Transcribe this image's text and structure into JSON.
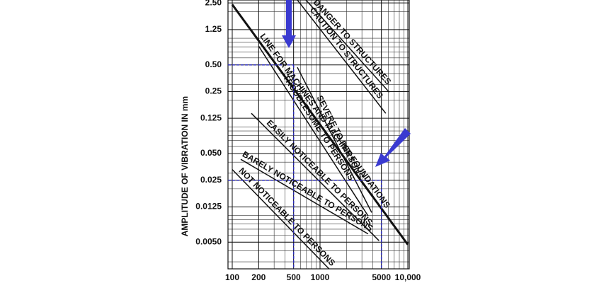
{
  "chart_data": {
    "type": "line",
    "log_x": true,
    "log_y": true,
    "grid": true,
    "y_label": "AMPLITUDE OF VIBRATION IN mm",
    "xlim": [
      100,
      10000
    ],
    "ylim": [
      0.0025,
      2.7
    ],
    "xticks": [
      100,
      200,
      500,
      1000,
      5000,
      {
        "value": 10000,
        "label": "10,000"
      }
    ],
    "yticks": [
      {
        "value": 2.5,
        "label": "2.50"
      },
      1.25,
      {
        "value": 0.5,
        "label": "0.50"
      },
      0.25,
      0.125,
      {
        "value": 0.05,
        "label": "0.050"
      },
      0.025,
      0.0125,
      {
        "value": 0.005,
        "label": "0.0050"
      }
    ],
    "series": [
      {
        "name": "LINE FOR MACHINES AND MACHINE FOUNDATIONS",
        "color": "#111111",
        "width": 3,
        "x": [
          100,
          10000
        ],
        "values": [
          2.4,
          0.0047
        ]
      },
      {
        "name": "DANGER TO STRUCTURES",
        "color": "#111111",
        "width": 1.5,
        "x": [
          690,
          6150
        ],
        "values": [
          2.7,
          0.246
        ]
      },
      {
        "name": "CAUTION TO STRUCTURES",
        "color": "#111111",
        "width": 1.5,
        "x": [
          552,
          5600
        ],
        "values": [
          2.7,
          0.142
        ]
      },
      {
        "name": "TROUBLESOME TO PERSONS",
        "color": "#111111",
        "width": 1.5,
        "x": [
          200,
          3530
        ],
        "values": [
          0.815,
          0.0099
        ]
      },
      {
        "name": "SEVERE TO PERSONS",
        "color": "#111111",
        "width": 1.5,
        "x": [
          552,
          3880
        ],
        "values": [
          0.469,
          0.0108
        ]
      },
      {
        "name": "EASILY NOTICEABLE TO PERSONS",
        "color": "#111111",
        "width": 1.5,
        "x": [
          165,
          4700
        ],
        "values": [
          0.142,
          0.0052
        ]
      },
      {
        "name": "BARELY NOTICEABLE TO PERSONS",
        "color": "#111111",
        "width": 1.5,
        "x": [
          125,
          3530
        ],
        "values": [
          0.043,
          0.0062
        ]
      },
      {
        "name": "NOT NOTICEABLE TO PERSONS",
        "color": "#111111",
        "width": 1.5,
        "x": [
          100,
          1400
        ],
        "values": [
          0.033,
          0.00226
        ]
      }
    ],
    "reference_points": [
      {
        "x": 500,
        "y": 0.5
      },
      {
        "x": 5000,
        "y": 0.025
      }
    ],
    "reference_color": "#2a2ab8"
  }
}
